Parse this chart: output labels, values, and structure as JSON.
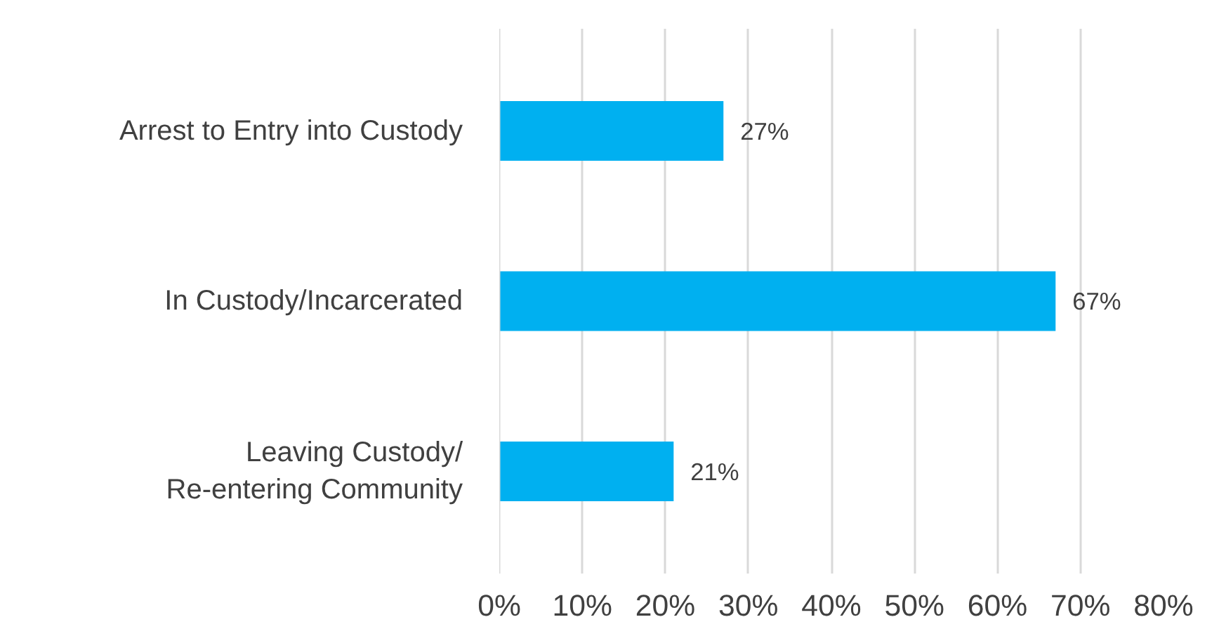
{
  "chart_data": {
    "type": "bar",
    "orientation": "horizontal",
    "categories": [
      "Arrest to Entry into Custody",
      "In Custody/Incarcerated",
      "Leaving Custody/Re-entering Community"
    ],
    "values": [
      27,
      67,
      21
    ],
    "color": "#00b0f0",
    "value_labels": [
      "27%",
      "67%",
      "21%"
    ],
    "xlim": [
      0,
      80
    ],
    "xticks": [
      {
        "value": 0,
        "label": "0%"
      },
      {
        "value": 10,
        "label": "10%"
      },
      {
        "value": 20,
        "label": "20%"
      },
      {
        "value": 30,
        "label": "30%"
      },
      {
        "value": 40,
        "label": "40%"
      },
      {
        "value": 50,
        "label": "50%"
      },
      {
        "value": 60,
        "label": "60%"
      },
      {
        "value": 70,
        "label": "70%"
      },
      {
        "value": 80,
        "label": "80%"
      }
    ],
    "grid": "x"
  }
}
